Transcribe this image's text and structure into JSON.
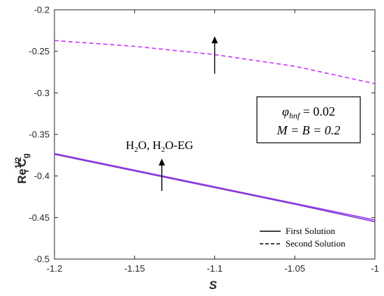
{
  "chart_data": {
    "type": "line",
    "xlabel": "S",
    "ylabel": {
      "base": "Re",
      "sup": "1/2",
      "sub": "r",
      "tail": "C",
      "tail_sub": "g"
    },
    "xlim": [
      -1.2,
      -1.0
    ],
    "ylim": [
      -0.5,
      -0.2
    ],
    "xticks": [
      -1.2,
      -1.15,
      -1.1,
      -1.05,
      -1
    ],
    "yticks": [
      -0.5,
      -0.45,
      -0.4,
      -0.35,
      -0.3,
      -0.25,
      -0.2
    ],
    "xtick_labels": [
      "-1.2",
      "-1.15",
      "-1.1",
      "-1.05",
      "-1"
    ],
    "ytick_labels": [
      "-0.5",
      "-0.45",
      "-0.4",
      "-0.35",
      "-0.3",
      "-0.25",
      "-0.2"
    ],
    "grid": false,
    "series": [
      {
        "name": "First Solution",
        "fluid": "H2O",
        "style": "solid",
        "color": "#9933FF",
        "x": [
          -1.2,
          -1.15,
          -1.1,
          -1.05,
          -1.0
        ],
        "y": [
          -0.373,
          -0.393,
          -0.413,
          -0.433,
          -0.453
        ]
      },
      {
        "name": "First Solution",
        "fluid": "H2O-EG",
        "style": "solid",
        "color": "#7F3FBF",
        "x": [
          -1.2,
          -1.15,
          -1.1,
          -1.05,
          -1.0
        ],
        "y": [
          -0.374,
          -0.394,
          -0.414,
          -0.434,
          -0.455
        ]
      },
      {
        "name": "Second Solution",
        "fluid": "H2O",
        "style": "dashed",
        "color": "#CC33FF",
        "x": [
          -1.2,
          -1.15,
          -1.1,
          -1.05,
          -1.0
        ],
        "y": [
          -0.237,
          -0.244,
          -0.254,
          -0.268,
          -0.289
        ]
      }
    ],
    "legend": {
      "placement": "bottom-right",
      "entries": [
        {
          "label": "First Solution",
          "style": "solid"
        },
        {
          "label": "Second Solution",
          "style": "dashed"
        }
      ]
    },
    "annotations": {
      "params_line1": {
        "sym": "φ",
        "sub": "hnf",
        "rest": " = 0.02"
      },
      "params_line2": "M = B = 0.2",
      "fluid_label": {
        "p1": "H",
        "s1": "2",
        "p2": "O, H",
        "s2": "2",
        "p3": "O-EG"
      },
      "arrows": [
        {
          "x": -1.1,
          "y_from": -0.277,
          "y_to": -0.232
        },
        {
          "x": -1.133,
          "y_from": -0.418,
          "y_to": -0.379
        }
      ]
    }
  }
}
